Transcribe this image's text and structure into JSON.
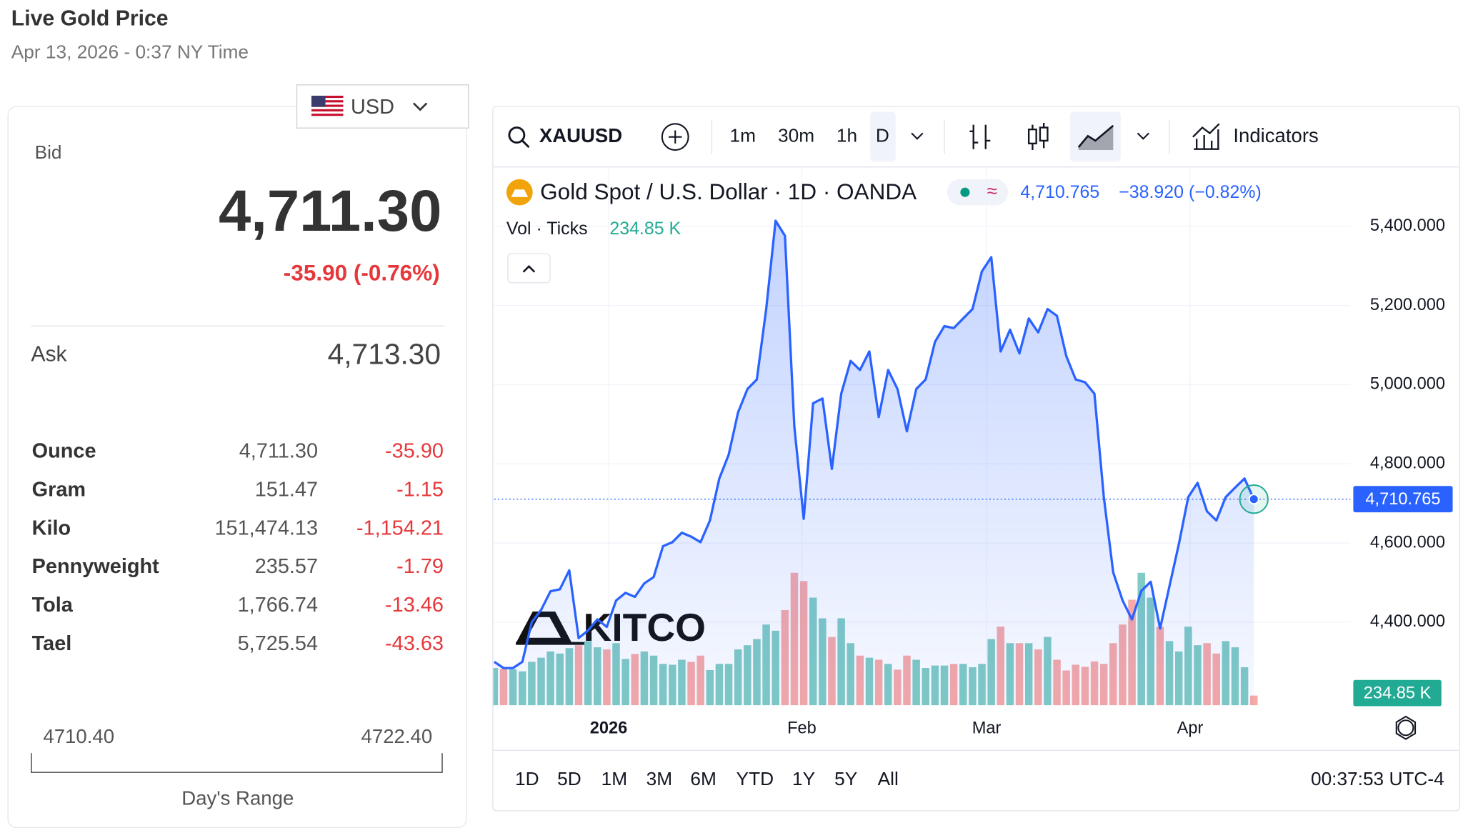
{
  "header": {
    "title": "Live Gold Price",
    "subtitle": "Apr 13, 2026 - 0:37 NY Time"
  },
  "currency": "USD",
  "quote": {
    "bid_label": "Bid",
    "bid": "4,711.30",
    "change": "-35.90 (-0.76%)",
    "ask_label": "Ask",
    "ask": "4,713.30"
  },
  "table": {
    "rows": [
      [
        "Ounce",
        "4,711.30",
        "-35.90"
      ],
      [
        "Gram",
        "151.47",
        "-1.15"
      ],
      [
        "Kilo",
        "151,474.13",
        "-1,154.21"
      ],
      [
        "Pennyweight",
        "235.57",
        "-1.79"
      ],
      [
        "Tola",
        "1,766.74",
        "-13.46"
      ],
      [
        "Tael",
        "5,725.54",
        "-43.63"
      ]
    ]
  },
  "day_range": {
    "low": "4710.40",
    "high": "4722.40",
    "label": "Day's Range"
  },
  "toolbar": {
    "symbol": "XAUUSD",
    "intervals": [
      "1m",
      "30m",
      "1h",
      "D"
    ],
    "indicators": "Indicators"
  },
  "legend": {
    "last": "4,710.765",
    "change": "−38.920 (−0.82%)",
    "vol_label": "Vol · Ticks",
    "vol": "234.85 K"
  },
  "watermark": "KITCO",
  "ranges": [
    "1D",
    "5D",
    "1M",
    "3M",
    "6M",
    "YTD",
    "1Y",
    "5Y",
    "All"
  ],
  "clock": "00:37:53 UTC-4",
  "chart_data": {
    "type": "line",
    "title": "Gold Spot / U.S. Dollar · 1D · OANDA",
    "series": [
      {
        "type": "line",
        "color": "#2962ff",
        "values": [
          4300,
          4284,
          4284,
          4300,
          4400,
          4431,
          4478,
          4483,
          4531,
          4360,
          4379,
          4407,
          4388,
          4455,
          4474,
          4464,
          4498,
          4514,
          4592,
          4602,
          4626,
          4616,
          4602,
          4657,
          4763,
          4823,
          4930,
          4989,
          5013,
          5191,
          5414,
          5376,
          4894,
          4661,
          4953,
          4965,
          4787,
          4977,
          5060,
          5037,
          5084,
          4918,
          5037,
          4989,
          4882,
          4989,
          5013,
          5108,
          5148,
          5143,
          5167,
          5191,
          5286,
          5322,
          5084,
          5139,
          5079,
          5167,
          5132,
          5191,
          5174,
          5072,
          5013,
          5006,
          4977,
          4716,
          4526,
          4455,
          4407,
          4479,
          4502,
          4384,
          4491,
          4597,
          4716,
          4752,
          4680,
          4657,
          4716,
          4740,
          4763,
          4710.765
        ]
      },
      {
        "type": "bar",
        "axis": "y2",
        "up_color": "#80cbc4",
        "down_color": "#f7a9a7",
        "values": [
          900,
          880,
          870,
          820,
          1050,
          1150,
          1300,
          1250,
          1380,
          1450,
          1550,
          1400,
          1350,
          1500,
          1120,
          1240,
          1300,
          1200,
          1000,
          980,
          1100,
          1050,
          1200,
          850,
          1000,
          1000,
          1350,
          1450,
          1600,
          1950,
          1800,
          2300,
          3200,
          3000,
          2600,
          2100,
          1650,
          2100,
          1500,
          1200,
          1150,
          1100,
          1000,
          860,
          1200,
          1100,
          900,
          960,
          960,
          1000,
          1000,
          920,
          1000,
          1600,
          1900,
          1500,
          1500,
          1500,
          1350,
          1650,
          1100,
          840,
          980,
          930,
          1060,
          1000,
          1500,
          1950,
          2550,
          3200,
          2600,
          1900,
          1550,
          1300,
          1900,
          1450,
          1500,
          1250,
          1550,
          1400,
          920,
          234.85
        ]
      }
    ],
    "xlim": [
      0,
      91.3
    ],
    "xticks": [
      {
        "value": 12.2,
        "label": "2026"
      },
      {
        "value": 32.8,
        "label": "Feb"
      },
      {
        "value": 52.5,
        "label": "Mar"
      },
      {
        "value": 74.2,
        "label": "Apr"
      }
    ],
    "ylim": [
      4190,
      5550
    ],
    "yticks": [
      {
        "value": 4400,
        "label": "4,400.000"
      },
      {
        "value": 4600,
        "label": "4,600.000"
      },
      {
        "value": 4800,
        "label": "4,800.000"
      },
      {
        "value": 5000,
        "label": "5,000.000"
      },
      {
        "value": 5200,
        "label": "5,200.000"
      },
      {
        "value": 5400,
        "label": "5,400.000"
      }
    ],
    "y2lim": [
      0,
      13000
    ],
    "grid": true
  }
}
